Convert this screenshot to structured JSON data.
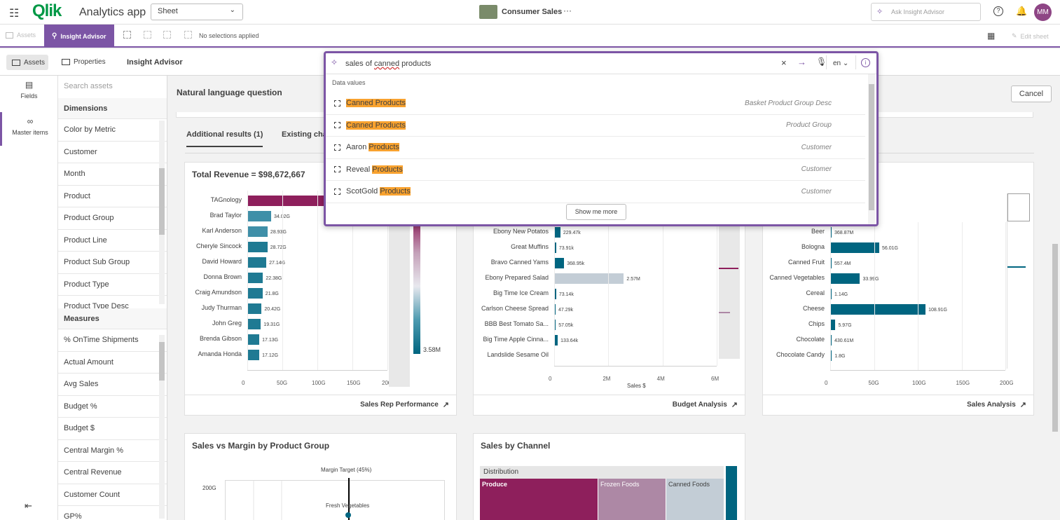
{
  "app": {
    "logo": "Qlik",
    "title": "Analytics app",
    "sheet_select": "Sheet",
    "center_title": "Consumer Sales",
    "more": "···",
    "ask_placeholder": "Ask Insight Advisor",
    "avatar": "MM"
  },
  "toolbar2": {
    "assets": "Assets",
    "insight_advisor": "Insight Advisor",
    "no_selections": "No selections applied",
    "edit_sheet": "Edit sheet"
  },
  "toolbar3": {
    "assets": "Assets",
    "properties": "Properties",
    "title": "Insight Advisor",
    "cancel": "Cancel"
  },
  "leftrail": {
    "fields": "Fields",
    "master_items": "Master items"
  },
  "assets": {
    "search_placeholder": "Search assets",
    "dimensions_header": "Dimensions",
    "dimensions": [
      "Color by Metric",
      "Customer",
      "Month",
      "Product",
      "Product Group",
      "Product Line",
      "Product Sub Group",
      "Product Type",
      "Product Type Desc"
    ],
    "measures_header": "Measures",
    "measures": [
      "% OnTime Shipments",
      "Actual Amount",
      "Avg Sales",
      "Budget %",
      "Budget $",
      "Central Margin %",
      "Central Revenue",
      "Customer Count",
      "GP%"
    ]
  },
  "main": {
    "nlq_label": "Natural language question",
    "tab_additional": "Additional results (1)",
    "tab_existing": "Existing char"
  },
  "search": {
    "query_prefix": "sales of ",
    "query_misspelled": "canned",
    "query_suffix": " products",
    "lang": "en",
    "section": "Data values",
    "results": [
      {
        "pre": "",
        "match": "Canned Products",
        "field": "Basket Product Group Desc"
      },
      {
        "pre": "",
        "match": "Canned Products",
        "field": "Product Group"
      },
      {
        "pre": "Aaron ",
        "match": "Products",
        "field": "Customer"
      },
      {
        "pre": "Reveal ",
        "match": "Products",
        "field": "Customer"
      },
      {
        "pre": "ScotGold ",
        "match": "Products",
        "field": "Customer"
      }
    ],
    "show_more": "Show me more"
  },
  "cards": {
    "rep_title": "Total Revenue = $98,672,667",
    "rep_footer": "Sales Rep Performance",
    "budget_footer": "Budget Analysis",
    "budget_xlabel": "Sales $",
    "sales_footer": "Sales Analysis",
    "margin_title": "Sales vs Margin by Product Group",
    "margin_target": "Margin Target (45%)",
    "margin_point": "Fresh Vegetables",
    "margin_ytick": "200G",
    "channel_title": "Sales by Channel",
    "channel_header": "Distribution",
    "channel_cells": [
      "Produce",
      "Frozen Foods",
      "Canned Foods"
    ]
  },
  "chart_data": [
    {
      "type": "bar",
      "title": "Total Revenue = $98,672,667",
      "categories": [
        "TAGnology",
        "Brad Taylor",
        "Karl Anderson",
        "Cheryle Sincock",
        "David Howard",
        "Donna Brown",
        "Craig Amundson",
        "Judy Thurman",
        "John Greg",
        "Brenda Gibson",
        "Amanda Honda"
      ],
      "values": [
        110,
        34.02,
        28.93,
        28.72,
        27.14,
        22.38,
        21.8,
        20.42,
        19.31,
        17.13,
        17.12
      ],
      "value_labels": [
        "",
        "34.02G",
        "28.93G",
        "28.72G",
        "27.14G",
        "22.38G",
        "21.8G",
        "20.42G",
        "19.31G",
        "17.13G",
        "17.12G"
      ],
      "xticks": [
        "0",
        "50G",
        "100G",
        "150G",
        "200G"
      ],
      "xlim": [
        0,
        200
      ],
      "legend_value": "3.58M"
    },
    {
      "type": "bar",
      "xlabel": "Sales $",
      "categories": [
        "Ebony New Potatos",
        "Great Muffins",
        "Bravo Canned Yams",
        "Ebony Prepared Salad",
        "Big Time Ice Cream",
        "Carlson Cheese Spread",
        "BBB Best Tomato Sa...",
        "Big Time Apple Cinna...",
        "Landslide Sesame Oil"
      ],
      "values": [
        229470,
        73910,
        368950,
        2570000,
        73140,
        47290,
        57050,
        133640,
        0
      ],
      "value_labels": [
        "229.47k",
        "73.91k",
        "368.95k",
        "2.57M",
        "73.14k",
        "47.29k",
        "57.05k",
        "133.64k",
        ""
      ],
      "xticks": [
        "0",
        "2M",
        "4M",
        "6M"
      ],
      "xlim": [
        0,
        6000000
      ]
    },
    {
      "type": "bar",
      "categories": [
        "Beer",
        "Bologna",
        "Canned Fruit",
        "Canned Vegetables",
        "Cereal",
        "Cheese",
        "Chips",
        "Chocolate",
        "Chocolate Candy"
      ],
      "values": [
        0.36887,
        56.01,
        0.5574,
        33.99,
        1.14,
        108.91,
        5.97,
        0.43061,
        1.8
      ],
      "value_labels": [
        "368.87M",
        "56.01G",
        "557.4M",
        "33.99G",
        "1.14G",
        "108.91G",
        "5.97G",
        "430.61M",
        "1.8G"
      ],
      "xticks": [
        "0",
        "50G",
        "100G",
        "150G",
        "200G"
      ],
      "xlim": [
        0,
        200
      ]
    }
  ],
  "colors": {
    "accent": "#7c55a5",
    "teal": "#006580",
    "teal_light": "#3f8fa8",
    "magenta": "#8e1f5c",
    "highlight": "#f8a22f",
    "treemap_produce": "#8e1f5c",
    "treemap_frozen": "#ad88a5",
    "treemap_canned": "#c3cdd6"
  }
}
